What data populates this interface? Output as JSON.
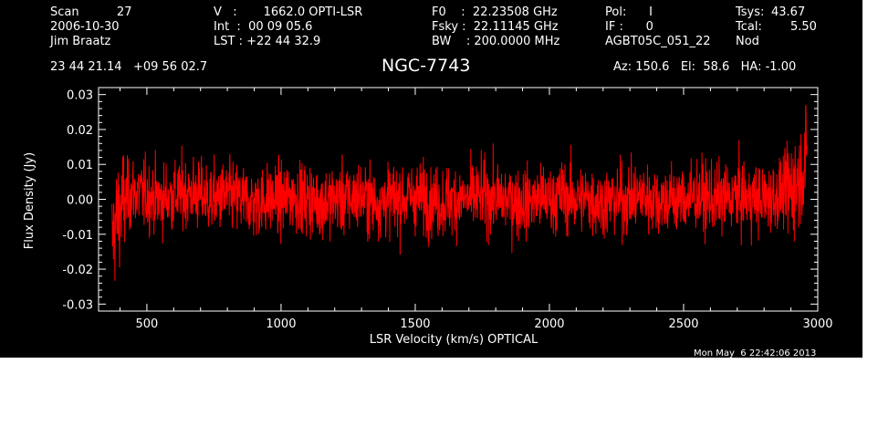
{
  "header": {
    "col1": [
      "Scan          27",
      "2006-10-30",
      "Jim Braatz"
    ],
    "col2": [
      "V   :       1662.0 OPTI-LSR",
      "Int  :  00 09 05.6",
      "LST : +22 44 32.9"
    ],
    "col3": [
      "F0    :  22.23508 GHz",
      "Fsky :  22.11145 GHz",
      "BW    : 200.0000 MHz"
    ],
    "col4": [
      "Pol:      I",
      "IF :      0",
      "AGBT05C_051_22"
    ],
    "col5": [
      "Tsys:",
      "Tcal:",
      "Nod"
    ],
    "col6": [
      "43.67",
      "5.50",
      ""
    ],
    "coords": "23 44 21.14   +09 56 02.7",
    "source": "NGC-7743",
    "pointing": "Az: 150.6   El:  58.6   HA: -1.00",
    "timestamp": "Mon May  6 22:42:06 2013"
  },
  "colors": {
    "background": "#000000",
    "axes": "#ffffff",
    "trace": "#ff0000"
  },
  "chart_data": {
    "type": "line",
    "xlabel": "LSR Velocity (km/s) OPTICAL",
    "ylabel": "Flux Density (Jy)",
    "xlim": [
      320,
      3000
    ],
    "ylim": [
      -0.032,
      0.032
    ],
    "xticks": [
      500,
      1000,
      1500,
      2000,
      2500,
      3000
    ],
    "xtick_labels": [
      "500",
      "1000",
      "1500",
      "2000",
      "2500",
      "3000"
    ],
    "yticks": [
      -0.03,
      -0.02,
      -0.01,
      0.0,
      0.01,
      0.02,
      0.03
    ],
    "ytick_labels": [
      "-0.03",
      "-0.02",
      "-0.01",
      "0.00",
      "0.01",
      "0.02",
      "0.03"
    ],
    "series": [
      {
        "x": [
          370,
          380,
          390,
          400,
          420,
          450,
          500,
          550,
          600,
          650,
          700,
          750,
          800,
          850,
          900,
          950,
          1000,
          1050,
          1100,
          1150,
          1200,
          1250,
          1300,
          1350,
          1400,
          1450,
          1500,
          1550,
          1600,
          1650,
          1700,
          1750,
          1800,
          1850,
          1900,
          1950,
          2000,
          2050,
          2100,
          2150,
          2200,
          2250,
          2300,
          2350,
          2400,
          2450,
          2500,
          2550,
          2600,
          2650,
          2700,
          2750,
          2800,
          2850,
          2880,
          2900,
          2920,
          2940,
          2960
        ],
        "y": [
          -0.012,
          -0.008,
          -0.005,
          -0.003,
          0.0,
          0.002,
          0.001,
          0.0,
          0.001,
          0.002,
          0.001,
          0.0,
          0.001,
          0.0,
          -0.001,
          0.0,
          0.0,
          0.001,
          0.0,
          -0.001,
          0.0,
          0.0,
          0.001,
          -0.001,
          0.0,
          0.0,
          0.001,
          0.0,
          -0.001,
          0.0,
          0.0,
          0.001,
          0.0,
          0.0,
          -0.001,
          0.0,
          0.0,
          0.001,
          0.0,
          0.0,
          -0.001,
          0.0,
          0.0,
          0.001,
          0.0,
          0.0,
          0.0,
          0.001,
          0.0,
          0.0,
          0.001,
          0.0,
          0.0,
          0.001,
          0.002,
          0.003,
          0.005,
          0.008,
          0.012
        ],
        "noise_rms": 0.005
      }
    ]
  }
}
